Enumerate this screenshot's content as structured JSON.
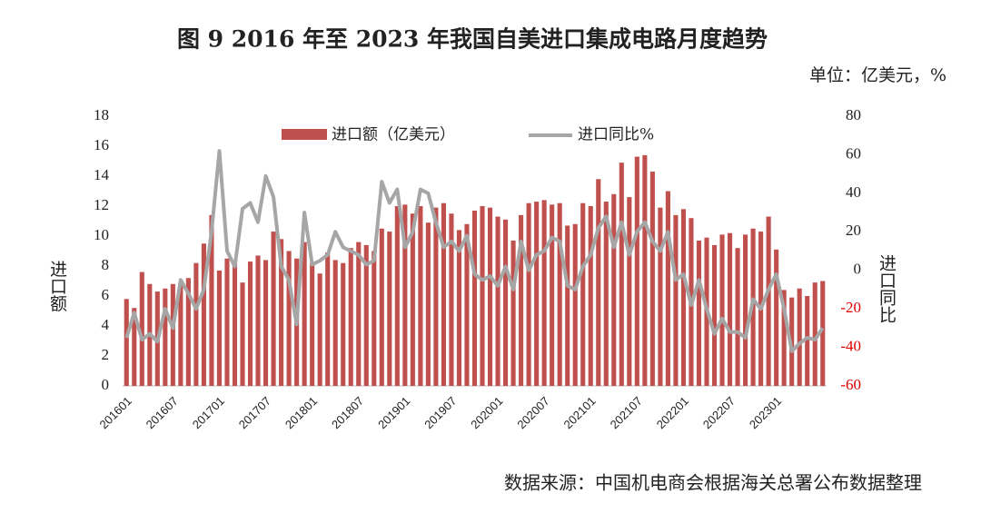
{
  "chart_data": {
    "type": "bar_line",
    "title": "图 9 2016 年至 2023 年我国自美进口集成电路月度趋势",
    "unit_note": "单位：亿美元，%",
    "source": "数据来源：中国机电商会根据海关总署公布数据整理",
    "y_label": "进口额",
    "y2_label": "进口同比",
    "categories": [
      "201601",
      null,
      null,
      null,
      null,
      null,
      "201607",
      null,
      null,
      null,
      null,
      null,
      "201701",
      null,
      null,
      null,
      null,
      null,
      "201707",
      null,
      null,
      null,
      null,
      null,
      "201801",
      null,
      null,
      null,
      null,
      null,
      "201807",
      null,
      null,
      null,
      null,
      null,
      "201901",
      null,
      null,
      null,
      null,
      null,
      "201907",
      null,
      null,
      null,
      null,
      null,
      "202001",
      null,
      null,
      null,
      null,
      null,
      "202007",
      null,
      null,
      null,
      null,
      null,
      "202101",
      null,
      null,
      null,
      null,
      null,
      "202107",
      null,
      null,
      null,
      null,
      null,
      "202201",
      null,
      null,
      null,
      null,
      null,
      "202207",
      null,
      null,
      null,
      null,
      null,
      "202301",
      null,
      null,
      null,
      null,
      null,
      null
    ],
    "series": [
      {
        "name": "进口额（亿美元）",
        "type": "bar",
        "color": "#c0504d",
        "values": [
          5.8,
          5.2,
          7.6,
          6.8,
          6.3,
          6.5,
          6.8,
          6.8,
          7.2,
          8.2,
          9.5,
          11.4,
          7.7,
          8.5,
          8.3,
          6.9,
          8.3,
          8.7,
          8.4,
          10.3,
          9.8,
          9.0,
          8.5,
          9.6,
          8.2,
          7.5,
          8.9,
          8.4,
          8.2,
          9.2,
          9.6,
          9.4,
          9.0,
          10.5,
          10.3,
          12.0,
          12.1,
          11.5,
          12.0,
          10.9,
          11.9,
          12.2,
          11.5,
          10.4,
          10.8,
          11.7,
          12.0,
          11.9,
          11.3,
          11.1,
          9.7,
          11.4,
          12.2,
          12.3,
          12.4,
          12.1,
          12.2,
          10.7,
          10.8,
          12.2,
          12.0,
          13.8,
          12.3,
          12.8,
          14.9,
          12.6,
          15.3,
          15.4,
          14.3,
          11.9,
          13.0,
          11.4,
          11.8,
          11.2,
          9.7,
          9.9,
          9.4,
          10.1,
          10.2,
          9.2,
          10.1,
          10.5,
          10.3,
          11.3,
          9.1,
          6.4,
          5.9,
          6.5,
          6.0,
          6.9,
          7.0
        ]
      },
      {
        "name": "进口同比%",
        "type": "line",
        "axis": "y2",
        "color": "#a6a6a6",
        "values": [
          -35,
          -22,
          -36,
          -33,
          -37,
          -20,
          -30,
          -5,
          -12,
          -20,
          -10,
          20,
          62,
          10,
          2,
          32,
          35,
          25,
          49,
          38,
          2,
          -5,
          -28,
          30,
          3,
          5,
          8,
          20,
          12,
          10,
          8,
          3,
          5,
          46,
          35,
          42,
          12,
          20,
          42,
          40,
          25,
          12,
          15,
          10,
          18,
          -2,
          -5,
          -3,
          -8,
          2,
          -10,
          15,
          0,
          8,
          10,
          17,
          15,
          -8,
          -10,
          2,
          8,
          22,
          28,
          12,
          25,
          8,
          20,
          25,
          15,
          10,
          20,
          -5,
          -2,
          -18,
          -5,
          -20,
          -33,
          -25,
          -32,
          -32,
          -35,
          -15,
          -20,
          -10,
          -2,
          -20,
          -42,
          -38,
          -35,
          -36,
          -30
        ]
      }
    ],
    "ylim": [
      0,
      18
    ],
    "yticks": [
      0,
      2,
      4,
      6,
      8,
      10,
      12,
      14,
      16,
      18
    ],
    "y2lim": [
      -60,
      80
    ],
    "y2ticks": [
      -60,
      -40,
      -20,
      0,
      20,
      40,
      60,
      80
    ],
    "y2_negative_tick_color": "#e00000",
    "legend": "top"
  }
}
